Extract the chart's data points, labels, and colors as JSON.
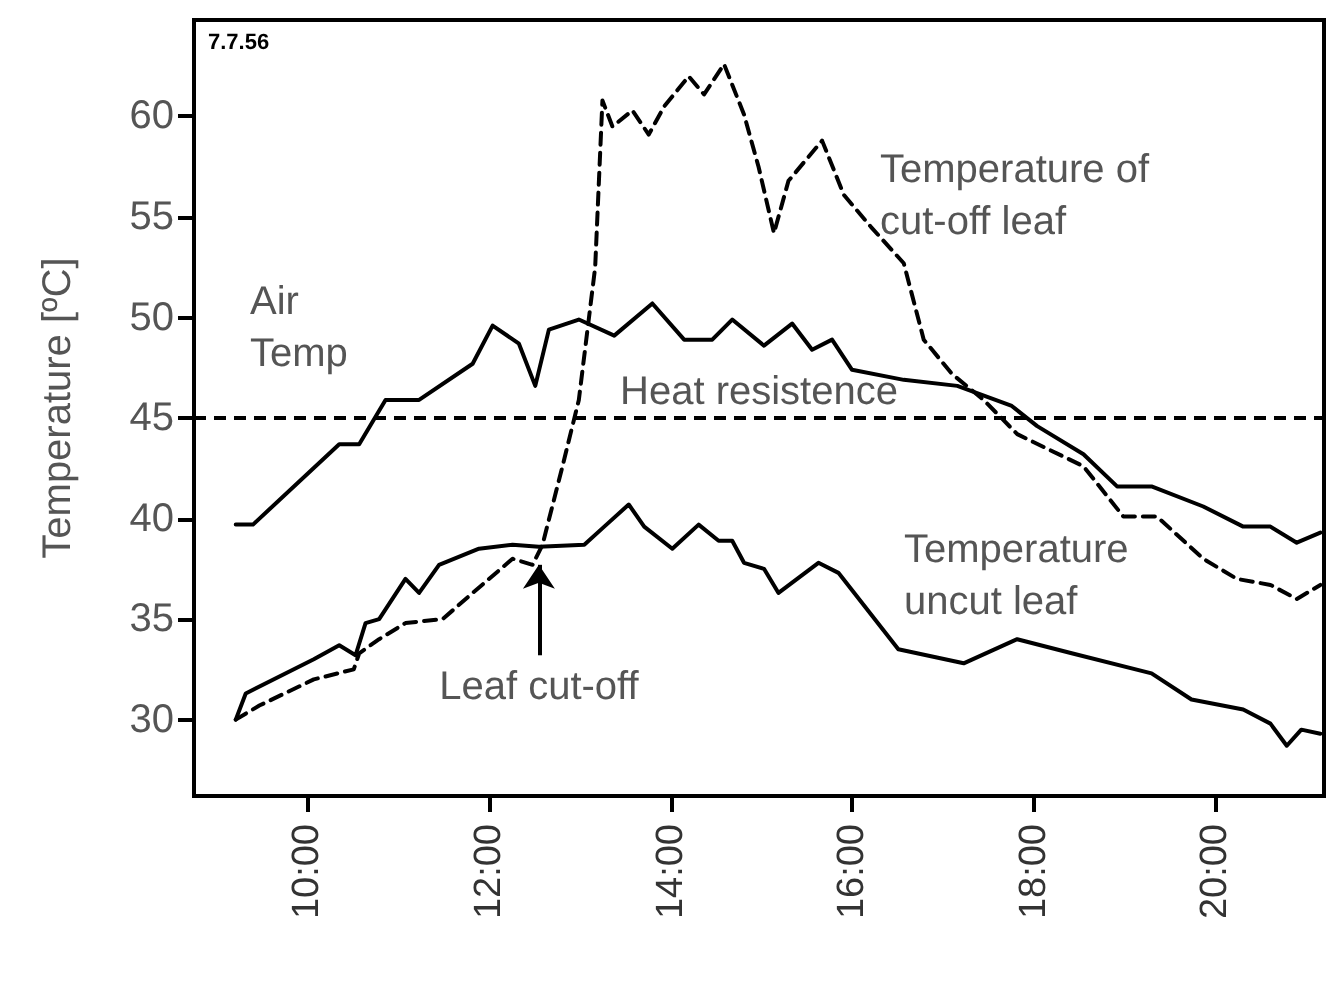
{
  "chart_data": {
    "type": "line",
    "ylabel": "Temperature [ºC]",
    "annotations": [
      "7.7.56",
      {
        "text": "Leaf cut-off",
        "x": 12.55,
        "y": 37.7
      }
    ],
    "xlim": [
      8.75,
      21.2
    ],
    "xticks": [
      {
        "value": 10,
        "label": "10:00"
      },
      {
        "value": 12,
        "label": "12:00"
      },
      {
        "value": 14,
        "label": "14:00"
      },
      {
        "value": 16,
        "label": "16:00"
      },
      {
        "value": 18,
        "label": "18:00"
      },
      {
        "value": 20,
        "label": "20:00"
      }
    ],
    "ylim": [
      26.2,
      64.8
    ],
    "yticks": [
      30,
      35,
      40,
      45,
      50,
      55,
      60
    ],
    "grid": false,
    "legend": false,
    "marker": "none",
    "ref_lines": [
      {
        "axis": "y",
        "value": 45,
        "label": "Heat resistence",
        "color": "#000000",
        "line_style": "dashed"
      }
    ],
    "series": [
      {
        "name": "Air Temp",
        "color": "#000000",
        "line_style": "solid",
        "x": [
          9.21,
          9.4,
          10.35,
          10.57,
          10.86,
          11.23,
          11.82,
          12.04,
          12.33,
          12.51,
          12.66,
          12.99,
          13.38,
          13.8,
          14.15,
          14.46,
          14.68,
          15.03,
          15.34,
          15.56,
          15.78,
          16.0,
          16.57,
          17.16,
          17.76,
          18.04,
          18.55,
          18.92,
          19.3,
          19.87,
          20.31,
          20.61,
          20.9,
          21.16
        ],
        "values": [
          39.7,
          39.7,
          43.7,
          43.7,
          45.9,
          45.9,
          47.7,
          49.6,
          48.7,
          46.6,
          49.4,
          49.9,
          49.1,
          50.7,
          48.9,
          48.9,
          49.9,
          48.6,
          49.7,
          48.4,
          48.9,
          47.4,
          46.9,
          46.6,
          45.6,
          44.6,
          43.2,
          41.6,
          41.6,
          40.6,
          39.6,
          39.6,
          38.8,
          39.3
        ]
      },
      {
        "name": "Temperature uncut leaf",
        "color": "#000000",
        "line_style": "solid",
        "x": [
          9.21,
          9.32,
          10.07,
          10.35,
          10.53,
          10.64,
          10.79,
          11.08,
          11.23,
          11.45,
          11.89,
          12.26,
          12.55,
          13.05,
          13.27,
          13.54,
          13.71,
          14.02,
          14.31,
          14.53,
          14.68,
          14.81,
          15.03,
          15.19,
          15.63,
          15.85,
          16.51,
          17.23,
          17.82,
          18.42,
          19.3,
          19.74,
          20.31,
          20.61,
          20.79,
          20.95,
          21.16
        ],
        "values": [
          30.0,
          31.3,
          33.0,
          33.7,
          33.2,
          34.8,
          35.0,
          37.0,
          36.3,
          37.7,
          38.5,
          38.7,
          38.6,
          38.7,
          39.6,
          40.7,
          39.6,
          38.5,
          39.7,
          38.9,
          38.9,
          37.8,
          37.5,
          36.3,
          37.8,
          37.3,
          33.5,
          32.8,
          34.0,
          33.3,
          32.3,
          31.0,
          30.5,
          29.8,
          28.7,
          29.5,
          29.3
        ]
      },
      {
        "name": "Temperature of cut-off leaf",
        "color": "#000000",
        "line_style": "dashed",
        "x": [
          9.21,
          9.47,
          10.07,
          10.51,
          10.57,
          10.79,
          11.08,
          11.49,
          11.82,
          12.26,
          12.48,
          12.59,
          12.81,
          12.99,
          13.17,
          13.25,
          13.36,
          13.58,
          13.76,
          13.93,
          14.2,
          14.37,
          14.59,
          14.81,
          14.97,
          15.14,
          15.3,
          15.67,
          15.91,
          16.21,
          16.57,
          16.79,
          17.1,
          17.45,
          17.82,
          18.55,
          18.99,
          19.36,
          19.87,
          20.24,
          20.61,
          20.9,
          21.16
        ],
        "values": [
          30.0,
          30.7,
          32.0,
          32.5,
          33.3,
          34.0,
          34.8,
          35.0,
          36.3,
          38.0,
          37.7,
          38.7,
          42.6,
          45.9,
          52.5,
          60.8,
          59.5,
          60.3,
          59.1,
          60.5,
          62.0,
          61.1,
          62.6,
          60.1,
          57.5,
          54.2,
          56.8,
          58.8,
          56.1,
          54.5,
          52.7,
          48.9,
          47.2,
          45.9,
          44.2,
          42.6,
          40.1,
          40.1,
          38.0,
          37.0,
          36.7,
          36.0,
          36.7
        ]
      }
    ]
  }
}
